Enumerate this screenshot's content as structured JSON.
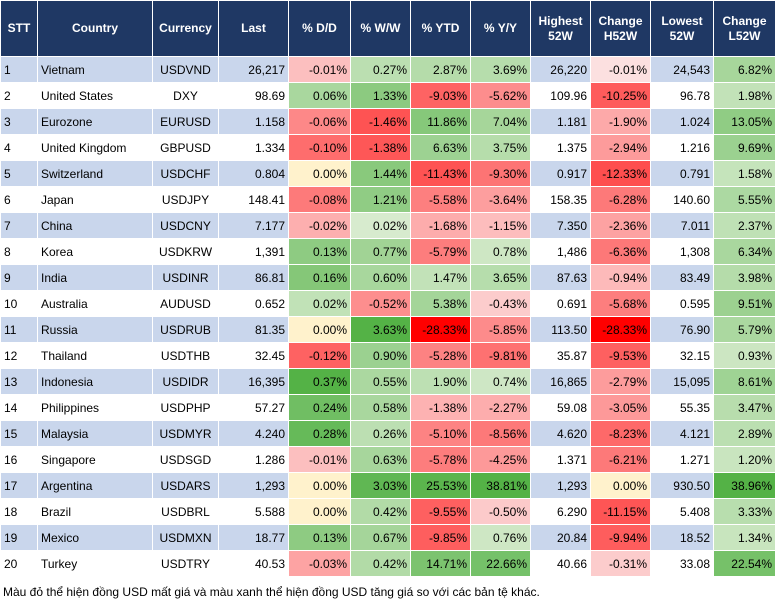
{
  "table": {
    "header": [
      "STT",
      "Country",
      "Currency",
      "Last",
      "% D/D",
      "% W/W",
      "% YTD",
      "% Y/Y",
      "Highest 52W",
      "Change H52W",
      "Lowest 52W",
      "Change L52W"
    ],
    "rows": [
      [
        "1",
        "Vietnam",
        "USDVND",
        "26,217",
        "-0.01%",
        "0.27%",
        "2.87%",
        "3.69%",
        "26,220",
        "-0.01%",
        "24,543",
        "6.82%"
      ],
      [
        "2",
        "United States",
        "DXY",
        "98.69",
        "0.06%",
        "1.33%",
        "-9.03%",
        "-5.62%",
        "109.96",
        "-10.25%",
        "96.78",
        "1.98%"
      ],
      [
        "3",
        "Eurozone",
        "EURUSD",
        "1.158",
        "-0.06%",
        "-1.46%",
        "11.86%",
        "7.04%",
        "1.181",
        "-1.90%",
        "1.024",
        "13.05%"
      ],
      [
        "4",
        "United Kingdom",
        "GBPUSD",
        "1.334",
        "-0.10%",
        "-1.38%",
        "6.63%",
        "3.75%",
        "1.375",
        "-2.94%",
        "1.216",
        "9.69%"
      ],
      [
        "5",
        "Switzerland",
        "USDCHF",
        "0.804",
        "0.00%",
        "1.44%",
        "-11.43%",
        "-9.30%",
        "0.917",
        "-12.33%",
        "0.791",
        "1.58%"
      ],
      [
        "6",
        "Japan",
        "USDJPY",
        "148.41",
        "-0.08%",
        "1.21%",
        "-5.58%",
        "-3.64%",
        "158.35",
        "-6.28%",
        "140.60",
        "5.55%"
      ],
      [
        "7",
        "China",
        "USDCNY",
        "7.177",
        "-0.02%",
        "0.02%",
        "-1.68%",
        "-1.15%",
        "7.350",
        "-2.36%",
        "7.011",
        "2.37%"
      ],
      [
        "8",
        "Korea",
        "USDKRW",
        "1,391",
        "0.13%",
        "0.77%",
        "-5.79%",
        "0.78%",
        "1,486",
        "-6.36%",
        "1,308",
        "6.34%"
      ],
      [
        "9",
        "India",
        "USDINR",
        "86.81",
        "0.16%",
        "0.60%",
        "1.47%",
        "3.65%",
        "87.63",
        "-0.94%",
        "83.49",
        "3.98%"
      ],
      [
        "10",
        "Australia",
        "AUDUSD",
        "0.652",
        "0.02%",
        "-0.52%",
        "5.38%",
        "-0.43%",
        "0.691",
        "-5.68%",
        "0.595",
        "9.51%"
      ],
      [
        "11",
        "Russia",
        "USDRUB",
        "81.35",
        "0.00%",
        "3.63%",
        "-28.33%",
        "-5.85%",
        "113.50",
        "-28.33%",
        "76.90",
        "5.79%"
      ],
      [
        "12",
        "Thailand",
        "USDTHB",
        "32.45",
        "-0.12%",
        "0.90%",
        "-5.28%",
        "-9.81%",
        "35.87",
        "-9.53%",
        "32.15",
        "0.93%"
      ],
      [
        "13",
        "Indonesia",
        "USDIDR",
        "16,395",
        "0.37%",
        "0.55%",
        "1.90%",
        "0.74%",
        "16,865",
        "-2.79%",
        "15,095",
        "8.61%"
      ],
      [
        "14",
        "Philippines",
        "USDPHP",
        "57.27",
        "0.24%",
        "0.58%",
        "-1.38%",
        "-2.27%",
        "59.08",
        "-3.05%",
        "55.35",
        "3.47%"
      ],
      [
        "15",
        "Malaysia",
        "USDMYR",
        "4.240",
        "0.28%",
        "0.26%",
        "-5.10%",
        "-8.56%",
        "4.620",
        "-8.23%",
        "4.121",
        "2.89%"
      ],
      [
        "16",
        "Singapore",
        "USDSGD",
        "1.286",
        "-0.01%",
        "0.63%",
        "-5.78%",
        "-4.25%",
        "1.371",
        "-6.21%",
        "1.271",
        "1.20%"
      ],
      [
        "17",
        "Argentina",
        "USDARS",
        "1,293",
        "0.00%",
        "3.03%",
        "25.53%",
        "38.81%",
        "1,293",
        "0.00%",
        "930.50",
        "38.96%"
      ],
      [
        "18",
        "Brazil",
        "USDBRL",
        "5.588",
        "0.00%",
        "0.42%",
        "-9.55%",
        "-0.50%",
        "6.290",
        "-11.15%",
        "5.408",
        "3.33%"
      ],
      [
        "19",
        "Mexico",
        "USDMXN",
        "18.77",
        "0.13%",
        "0.67%",
        "-9.85%",
        "0.76%",
        "20.84",
        "-9.94%",
        "18.52",
        "1.34%"
      ],
      [
        "20",
        "Turkey",
        "USDTRY",
        "40.53",
        "-0.03%",
        "0.42%",
        "14.71%",
        "22.66%",
        "40.66",
        "-0.31%",
        "33.08",
        "22.54%"
      ]
    ]
  },
  "note": "Màu đỏ thể hiện đồng USD mất giá và màu xanh thể hiện đồng USD tăng giá so với các bản tệ khác."
}
